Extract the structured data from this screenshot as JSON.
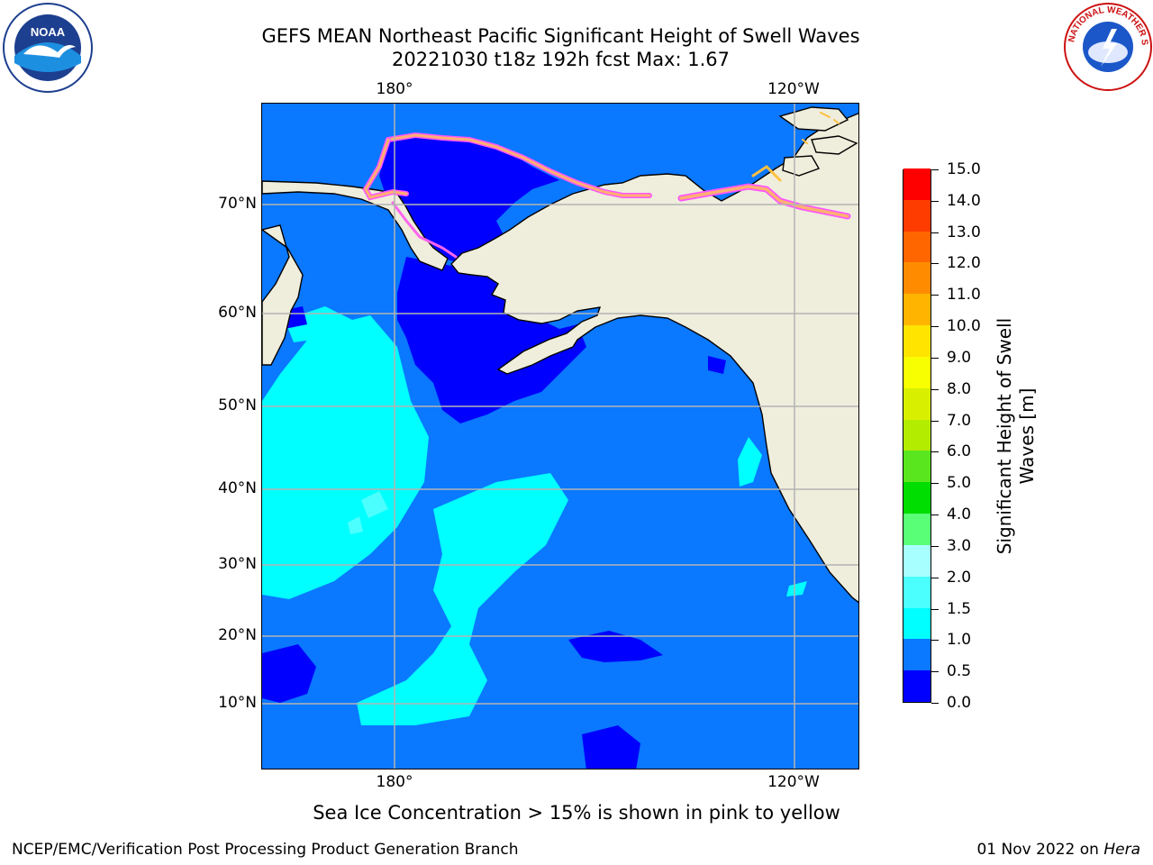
{
  "title": {
    "line1": "GEFS MEAN Northeast Pacific Significant Height of Swell Waves",
    "line2": "20221030 t18z 192h fcst   Max: 1.67"
  },
  "logos": {
    "left": {
      "name": "noaa-logo",
      "text": "NOAA"
    },
    "right": {
      "name": "nws-logo",
      "text": "NATIONAL WEATHER SERVICE"
    }
  },
  "map": {
    "projection": "mercator",
    "lon_labels_top": [
      "180°",
      "120°W"
    ],
    "lon_labels_bottom": [
      "180°",
      "120°W"
    ],
    "lat_labels": [
      "70°N",
      "60°N",
      "50°N",
      "40°N",
      "30°N",
      "20°N",
      "10°N"
    ],
    "ocean_color": "#0a78ff",
    "land_color": "#efeddc",
    "coast_color": "#000000",
    "grid": true,
    "grid_color": "#b4b4b4"
  },
  "colorbar": {
    "label": "Significant Height of Swell Waves [m]",
    "label_line1": "Significant Height of Swell",
    "label_line2": "Waves [m]",
    "ticks": [
      "0.0",
      "0.5",
      "1.0",
      "1.5",
      "2.0",
      "3.0",
      "4.0",
      "5.0",
      "6.0",
      "7.0",
      "8.0",
      "9.0",
      "10.0",
      "11.0",
      "12.0",
      "13.0",
      "14.0",
      "15.0"
    ],
    "colors": [
      "#0000ff",
      "#0a78ff",
      "#00ffff",
      "#4cffff",
      "#a8ffff",
      "#5aff78",
      "#00dd00",
      "#5ae61e",
      "#b4ec00",
      "#d8f000",
      "#f8ff00",
      "#ffe400",
      "#ffb400",
      "#ff8c00",
      "#ff6600",
      "#ff3c00",
      "#ff0000"
    ]
  },
  "subtitle": "Sea Ice Concentration > 15% is shown in pink to yellow",
  "footer": {
    "left": "NCEP/EMC/Verification Post Processing Product Generation Branch",
    "right_date": "01 Nov 2022 on ",
    "right_host": "Hera"
  }
}
